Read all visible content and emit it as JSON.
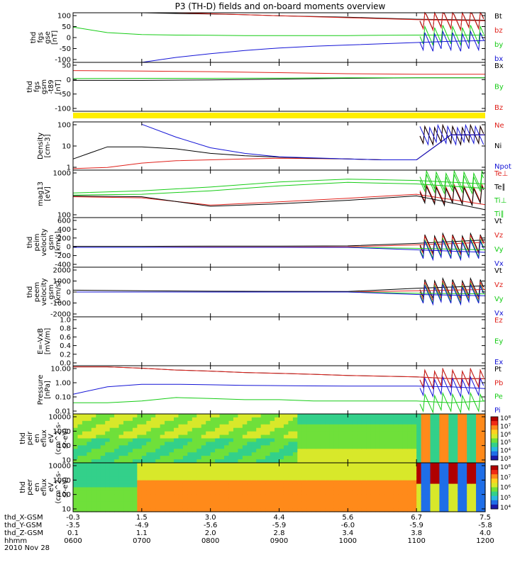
{
  "title": "P3 (TH-D) fields and on-board moments overview",
  "date": "2010 Nov 28",
  "colors": {
    "black": "#000000",
    "red": "#e0211b",
    "green": "#16cc16",
    "blue": "#1414d6",
    "yellow": "#ffee00"
  },
  "panels": [
    {
      "ylabel": [
        "thd",
        "fgs",
        "gse",
        "[nT]"
      ],
      "ticks": [
        "100",
        "50",
        "0",
        "-50",
        "-100"
      ],
      "legend": [
        {
          "text": "Bt",
          "color": "black"
        },
        {
          "text": "bz",
          "color": "red"
        },
        {
          "text": "by",
          "color": "green"
        },
        {
          "text": "bx",
          "color": "blue"
        }
      ]
    },
    {
      "ylabel": [
        "thd",
        "fgs",
        "gsm",
        "-t89",
        "[nT]"
      ],
      "ticks": [
        "50",
        "0",
        "-50",
        "-100"
      ],
      "legend": [
        {
          "text": "Bx",
          "color": "black"
        },
        {
          "text": "By",
          "color": "green"
        },
        {
          "text": "Bz",
          "color": "red"
        }
      ]
    },
    {
      "ylabel": [
        "Density",
        "[cm-3]"
      ],
      "ticks": [
        "100",
        "10",
        "1"
      ],
      "legend": [
        {
          "text": "Ne",
          "color": "red"
        },
        {
          "text": "Ni",
          "color": "black"
        },
        {
          "text": "Npot",
          "color": "blue"
        }
      ]
    },
    {
      "ylabel": [
        "mag13",
        "[eV]"
      ],
      "ticks": [
        "1000",
        "100"
      ],
      "legend": [
        {
          "text": "Te⊥",
          "color": "red"
        },
        {
          "text": "Te∥",
          "color": "black"
        },
        {
          "text": "Ti⊥",
          "color": "green"
        },
        {
          "text": "Ti∥",
          "color": "green"
        }
      ]
    },
    {
      "ylabel": [
        "thd",
        "peim",
        "velocity",
        "gsm",
        "[km/s]"
      ],
      "ticks": [
        "600",
        "400",
        "200",
        "0",
        "-200",
        "-400"
      ],
      "legend": [
        {
          "text": "Vt",
          "color": "black"
        },
        {
          "text": "Vz",
          "color": "red"
        },
        {
          "text": "Vy",
          "color": "green"
        },
        {
          "text": "Vx",
          "color": "blue"
        }
      ]
    },
    {
      "ylabel": [
        "thd",
        "peem",
        "velocity",
        "gsm",
        "[km/s]"
      ],
      "ticks": [
        "2000",
        "1000",
        "0",
        "-1000",
        "-2000"
      ],
      "legend": [
        {
          "text": "Vt",
          "color": "black"
        },
        {
          "text": "Vz",
          "color": "red"
        },
        {
          "text": "Vy",
          "color": "green"
        },
        {
          "text": "Vx",
          "color": "blue"
        }
      ]
    },
    {
      "ylabel": [
        "E=-VxB",
        "[mV/m]"
      ],
      "ticks": [
        "1.0",
        "0.8",
        "0.6",
        "0.4",
        "0.2",
        "0.0"
      ],
      "legend": [
        {
          "text": "Ez",
          "color": "red"
        },
        {
          "text": "Ey",
          "color": "green"
        },
        {
          "text": "Ex",
          "color": "blue"
        }
      ]
    },
    {
      "ylabel": [
        "Pressure",
        "[nPa]"
      ],
      "ticks": [
        "10.00",
        "1.00",
        "0.10",
        "0.01"
      ],
      "legend": [
        {
          "text": "Pt",
          "color": "black"
        },
        {
          "text": "Pb",
          "color": "red"
        },
        {
          "text": "Pe",
          "color": "green"
        },
        {
          "text": "Pi",
          "color": "blue"
        }
      ]
    },
    {
      "ylabel": [
        "thd",
        "peir",
        "en",
        "eflux",
        "eV",
        "(cm^2-s-",
        "sr-eV)"
      ],
      "ticks": [
        "10000",
        "1000",
        "100",
        "10"
      ],
      "colorbar": [
        "10⁸",
        "10⁷",
        "10⁶",
        "10⁵",
        "10⁴",
        "10³"
      ]
    },
    {
      "ylabel": [
        "thd",
        "peer",
        "en",
        "eflux",
        "eV",
        "(cm^2-s-",
        "sr-eV)"
      ],
      "ticks": [
        "10000",
        "1000",
        "100",
        "10"
      ],
      "colorbar": [
        "10⁸",
        "10⁷",
        "10⁶",
        "10⁵",
        "10⁴"
      ]
    }
  ],
  "xaxis": {
    "rows": [
      {
        "label": "thd_X-GSM",
        "values": [
          "-0.3",
          "1.5",
          "3.0",
          "4.4",
          "5.6",
          "6.7",
          "7.5"
        ]
      },
      {
        "label": "thd_Y-GSM",
        "values": [
          "-3.5",
          "-4.9",
          "-5.6",
          "-5.9",
          "-6.0",
          "-5.9",
          "-5.8"
        ]
      },
      {
        "label": "thd_Z-GSM",
        "values": [
          "0.1",
          "1.1",
          "2.0",
          "2.8",
          "3.4",
          "3.8",
          "4.0"
        ]
      },
      {
        "label": "hhmm",
        "values": [
          "0600",
          "0700",
          "0800",
          "0900",
          "1000",
          "1100",
          "1200"
        ]
      }
    ]
  },
  "chart_data": {
    "type": "line",
    "title": "P3 (TH-D) fields and on-board moments overview",
    "x": [
      "0600",
      "0700",
      "0800",
      "0900",
      "1000",
      "1100",
      "1200"
    ],
    "panels": [
      {
        "name": "fgs gse [nT]",
        "ylim": [
          -100,
          100
        ],
        "series": [
          {
            "name": "Bt",
            "x_hours": [
              6,
              6.5,
              7,
              7.5,
              8,
              8.5,
              9,
              9.5,
              10,
              10.5,
              11,
              11.5,
              12
            ],
            "values": [
              105,
              102,
              100,
              97,
              95,
              92,
              88,
              85,
              82,
              78,
              74,
              72,
              70
            ]
          },
          {
            "name": "bz",
            "x_hours": [
              6,
              6.5,
              7,
              7.5,
              8,
              8.5,
              9,
              9.5,
              10,
              10.5,
              11,
              11.5,
              12
            ],
            "values": [
              110,
              108,
              104,
              100,
              96,
              92,
              88,
              84,
              80,
              76,
              72,
              70,
              68
            ]
          },
          {
            "name": "by",
            "x_hours": [
              6,
              6.5,
              7,
              7.5,
              8,
              8.5,
              9,
              9.5,
              10,
              10.5,
              11,
              11.5,
              12
            ],
            "values": [
              42,
              20,
              12,
              10,
              9,
              8,
              8,
              8,
              8,
              9,
              10,
              10,
              10
            ]
          },
          {
            "name": "bx",
            "x_hours": [
              7,
              7.5,
              8,
              8.5,
              9,
              9.5,
              10,
              10.5,
              11,
              11.5,
              12
            ],
            "values": [
              -100,
              -80,
              -65,
              -52,
              -42,
              -35,
              -30,
              -25,
              -20,
              -15,
              -12
            ]
          }
        ]
      },
      {
        "name": "fgs gsm-t89 [nT]",
        "ylim": [
          -130,
          60
        ],
        "series": [
          {
            "name": "Bx",
            "x_hours": [
              6,
              7,
              8,
              9,
              10,
              11,
              12
            ],
            "values": [
              -10,
              -10,
              -8,
              -5,
              -2,
              0,
              0
            ]
          },
          {
            "name": "By",
            "x_hours": [
              6,
              7,
              8,
              9,
              10,
              11,
              12
            ],
            "values": [
              -3,
              -2,
              -2,
              -1,
              0,
              0,
              0
            ]
          },
          {
            "name": "Bz",
            "x_hours": [
              6,
              7,
              8,
              9,
              10,
              11,
              12
            ],
            "values": [
              28,
              26,
              24,
              20,
              16,
              14,
              14
            ]
          }
        ]
      },
      {
        "name": "Density [cm-3]",
        "scale": "log",
        "ylim": [
          0.5,
          200
        ],
        "series": [
          {
            "name": "Ne",
            "x_hours": [
              6,
              6.5,
              7,
              7.5,
              8,
              8.5,
              9,
              9.5,
              10,
              10.5,
              11,
              11.5,
              12
            ],
            "values": [
              0.6,
              0.7,
              1.2,
              1.6,
              1.8,
              2.0,
              2.2,
              2.1,
              2.0,
              1.8,
              1.8,
              40,
              40
            ]
          },
          {
            "name": "Ni",
            "x_hours": [
              6,
              6.5,
              7,
              7.5,
              8,
              8.5,
              9,
              9.5,
              10,
              10.5,
              11,
              11.5,
              12
            ],
            "values": [
              2,
              9,
              9,
              7,
              4,
              3,
              2.5,
              2.2,
              2.0,
              1.8,
              1.8,
              40,
              40
            ]
          },
          {
            "name": "Npot",
            "x_hours": [
              7,
              7.5,
              8,
              8.5,
              9,
              9.5,
              10,
              10.5,
              11,
              11.5,
              12
            ],
            "values": [
              150,
              30,
              8,
              4,
              2.6,
              2.3,
              2.0,
              1.8,
              1.8,
              40,
              40
            ]
          }
        ]
      },
      {
        "name": "mag13 [eV]",
        "scale": "log",
        "ylim": [
          40,
          10000
        ],
        "series": [
          {
            "name": "Te⊥",
            "x_hours": [
              6,
              7,
              8,
              9,
              10,
              11,
              12
            ],
            "values": [
              450,
              400,
              170,
              250,
              380,
              600,
              180
            ]
          },
          {
            "name": "Te∥",
            "x_hours": [
              6,
              7,
              8,
              9,
              10,
              11,
              12
            ],
            "values": [
              500,
              450,
              150,
              200,
              300,
              500,
              100
            ]
          },
          {
            "name": "Ti⊥",
            "x_hours": [
              6,
              7,
              8,
              9,
              10,
              11,
              12
            ],
            "values": [
              550,
              600,
              900,
              1600,
              2400,
              2000,
              1200
            ]
          },
          {
            "name": "Ti∥",
            "x_hours": [
              6,
              7,
              8,
              9,
              10,
              11,
              12
            ],
            "values": [
              700,
              900,
              1400,
              2500,
              3500,
              3000,
              2000
            ]
          }
        ]
      },
      {
        "name": "peim velocity gsm [km/s]",
        "ylim": [
          -400,
          600
        ],
        "series": [
          {
            "name": "Vt",
            "x_hours": [
              6,
              7,
              8,
              9,
              10,
              11,
              12
            ],
            "values": [
              20,
              20,
              25,
              25,
              30,
              80,
              150
            ]
          },
          {
            "name": "Vz",
            "x_hours": [
              6,
              7,
              8,
              9,
              10,
              11,
              12
            ],
            "values": [
              0,
              0,
              5,
              5,
              10,
              50,
              100
            ]
          },
          {
            "name": "Vy",
            "x_hours": [
              6,
              7,
              8,
              9,
              10,
              11,
              12
            ],
            "values": [
              0,
              0,
              0,
              0,
              0,
              -20,
              -50
            ]
          },
          {
            "name": "Vx",
            "x_hours": [
              6,
              7,
              8,
              9,
              10,
              11,
              12
            ],
            "values": [
              0,
              0,
              0,
              0,
              0,
              -50,
              -100
            ]
          }
        ]
      },
      {
        "name": "peem velocity gsm [km/s]",
        "ylim": [
          -2000,
          2000
        ],
        "series": [
          {
            "name": "Vt",
            "x_hours": [
              6,
              7,
              8,
              9,
              10,
              11,
              12
            ],
            "values": [
              150,
              100,
              60,
              50,
              40,
              300,
              500
            ]
          },
          {
            "name": "Vz",
            "x_hours": [
              6,
              7,
              8,
              9,
              10,
              11,
              12
            ],
            "values": [
              0,
              0,
              0,
              0,
              0,
              100,
              200
            ]
          },
          {
            "name": "Vy",
            "x_hours": [
              6,
              7,
              8,
              9,
              10,
              11,
              12
            ],
            "values": [
              0,
              0,
              0,
              0,
              0,
              -100,
              -150
            ]
          },
          {
            "name": "Vx",
            "x_hours": [
              6,
              7,
              8,
              9,
              10,
              11,
              12
            ],
            "values": [
              0,
              0,
              0,
              0,
              0,
              -200,
              -300
            ]
          }
        ]
      },
      {
        "name": "E=-VxB [mV/m]",
        "ylim": [
          0,
          1
        ],
        "series": []
      },
      {
        "name": "Pressure [nPa]",
        "scale": "log",
        "ylim": [
          0.005,
          12
        ],
        "series": [
          {
            "name": "Pt",
            "x_hours": [
              6,
              6.5,
              7,
              7.5,
              8,
              8.5,
              9,
              9.5,
              10,
              10.5,
              11,
              11.5,
              12
            ],
            "values": [
              10,
              10,
              8,
              6,
              5,
              4,
              3.5,
              3,
              2.5,
              2.2,
              2,
              1.5,
              1.5
            ]
          },
          {
            "name": "Pb",
            "x_hours": [
              6,
              6.5,
              7,
              7.5,
              8,
              8.5,
              9,
              9.5,
              10,
              10.5,
              11,
              11.5,
              12
            ],
            "values": [
              10,
              10,
              8,
              6,
              5,
              4,
              3.5,
              3,
              2.5,
              2.2,
              2,
              1.5,
              1.5
            ]
          },
          {
            "name": "Pe",
            "x_hours": [
              6,
              6.5,
              7,
              7.5,
              8,
              8.5,
              9,
              9.5,
              10,
              10.5,
              11,
              11.5,
              12
            ],
            "values": [
              0.03,
              0.03,
              0.04,
              0.07,
              0.06,
              0.05,
              0.05,
              0.04,
              0.04,
              0.04,
              0.04,
              0.03,
              0.04
            ]
          },
          {
            "name": "Pi",
            "x_hours": [
              6,
              6.5,
              7,
              7.5,
              8,
              8.5,
              9,
              9.5,
              10,
              10.5,
              11,
              11.5,
              12
            ],
            "values": [
              0.12,
              0.4,
              0.6,
              0.6,
              0.55,
              0.5,
              0.48,
              0.46,
              0.45,
              0.45,
              0.45,
              0.4,
              0.3
            ]
          }
        ]
      },
      {
        "name": "peir en eflux",
        "type": "heatmap",
        "ylim": [
          10,
          20000
        ]
      },
      {
        "name": "peer en eflux",
        "type": "heatmap",
        "ylim": [
          10,
          20000
        ]
      }
    ]
  }
}
